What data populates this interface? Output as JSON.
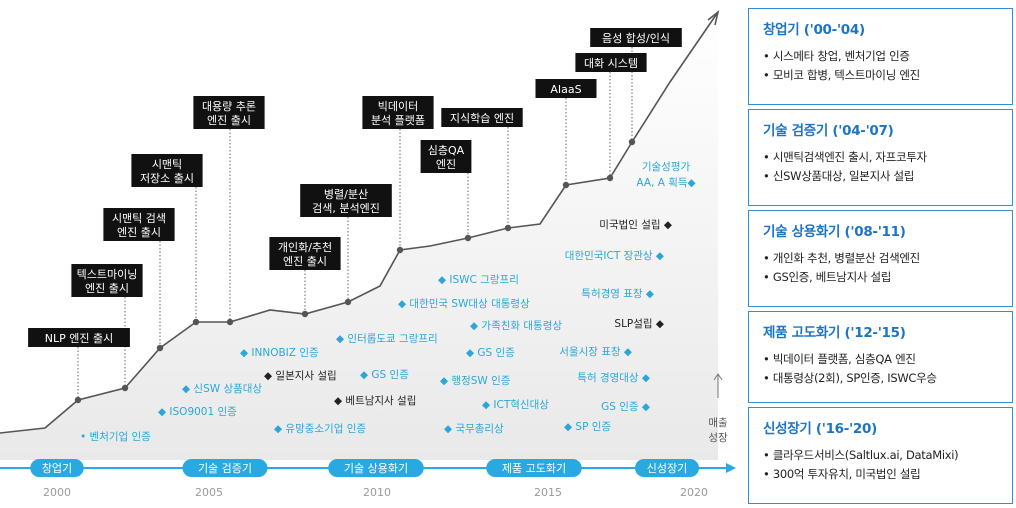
{
  "phases": [
    {
      "label": "창업기",
      "title": "창업기 ('00-'04)",
      "items": [
        "시스메타 창업, 벤처기업 인증",
        "모비코 합병, 텍스트마이닝 엔진"
      ]
    },
    {
      "label": "기술 검증기",
      "title": "기술 검증기  ('04-'07)",
      "items": [
        "시맨틱검색엔진 출시, 자프코투자",
        "신SW상품대상, 일본지사 설립"
      ]
    },
    {
      "label": "기술 상용화기",
      "title": "기술 상용화기 ('08-'11)",
      "items": [
        "개인화 추천, 병렬분산 검색엔진",
        "GS인증, 베트남지사 설립"
      ]
    },
    {
      "label": "제품 고도화기",
      "title": "제품 고도화기 ('12-'15)",
      "items": [
        "빅데이터 플랫폼, 심층QA 엔진",
        "대통령상(2회), SP인증, ISWC우승"
      ]
    },
    {
      "label": "신성장기",
      "title": "신성장기 ('16-'20)",
      "items": [
        "클라우드서비스(Saltlux.ai,  DataMixi)",
        "300억 투자유치, 미국법인 설립"
      ]
    }
  ],
  "years": [
    "2000",
    "2005",
    "2010",
    "2015",
    "2020"
  ],
  "axis_label": [
    "매출",
    "성장"
  ],
  "milestones": [
    {
      "lines": [
        "NLP 엔진 출시"
      ]
    },
    {
      "lines": [
        "텍스트마이닝",
        "엔진 출시"
      ]
    },
    {
      "lines": [
        "시맨틱 검색",
        "엔진 출시"
      ]
    },
    {
      "lines": [
        "시맨틱",
        "저장소 출시"
      ]
    },
    {
      "lines": [
        "대용량 추론",
        "엔진 출시"
      ]
    },
    {
      "lines": [
        "개인화/추천",
        "엔진 출시"
      ]
    },
    {
      "lines": [
        "병렬/분산",
        "검색, 분석엔진"
      ]
    },
    {
      "lines": [
        "빅데이터",
        "분석 플랫폼"
      ]
    },
    {
      "lines": [
        "심층QA",
        "엔진"
      ]
    },
    {
      "lines": [
        "지식학습 엔진"
      ]
    },
    {
      "lines": [
        "AIaaS"
      ]
    },
    {
      "lines": [
        "대화 시스템"
      ]
    },
    {
      "lines": [
        "음성 합성/인식"
      ]
    }
  ],
  "awards": [
    {
      "text": "• 벤처기업 인증",
      "color": "#2aa7d8"
    },
    {
      "text": "◆ ISO9001 인증",
      "color": "#2aa7d8"
    },
    {
      "text": "◆ 신SW 상품대상",
      "color": "#2aa7d8"
    },
    {
      "text": "◆ INNOBIZ 인증",
      "color": "#2aa7d8"
    },
    {
      "text": "◆ 일본지사 설립",
      "color": "#222222"
    },
    {
      "text": "◆ 유망중소기업 인증",
      "color": "#2aa7d8"
    },
    {
      "text": "◆ 베트남지사 설립",
      "color": "#222222"
    },
    {
      "text": "◆ GS 인증",
      "color": "#2aa7d8"
    },
    {
      "text": "◆ 인터롭도쿄 그랑프리",
      "color": "#2aa7d8"
    },
    {
      "text": "◆ ISWC 그랑프리",
      "color": "#2aa7d8"
    },
    {
      "text": "◆ 대한민국 SW대상 대통령상",
      "color": "#2aa7d8"
    },
    {
      "text": "◆ 가족친화 대통령상",
      "color": "#2aa7d8"
    },
    {
      "text": "◆ GS 인증",
      "color": "#2aa7d8"
    },
    {
      "text": "◆ 행정SW 인증",
      "color": "#2aa7d8"
    },
    {
      "text": "◆ ICT혁신대상",
      "color": "#2aa7d8"
    },
    {
      "text": "◆ 국무총리상",
      "color": "#2aa7d8"
    },
    {
      "text": "미국법인 설립 ◆",
      "color": "#222222"
    },
    {
      "text": "대한민국ICT 장관상 ◆",
      "color": "#2aa7d8"
    },
    {
      "text": "특허경영 표창 ◆",
      "color": "#2aa7d8"
    },
    {
      "text": "SLP설립 ◆",
      "color": "#222222"
    },
    {
      "text": "서울시장 표창 ◆",
      "color": "#2aa7d8"
    },
    {
      "text": "특허 경영대상 ◆",
      "color": "#2aa7d8"
    },
    {
      "text": "GS 인증 ◆",
      "color": "#2aa7d8"
    },
    {
      "text": "◆ SP 인증",
      "color": "#2aa7d8"
    },
    {
      "text": "기술성평가",
      "color": "#2aa7d8"
    },
    {
      "text": "AA, A 획득◆",
      "color": "#2aa7d8"
    }
  ],
  "colors": {
    "accent": "#2aa7d8",
    "card_border": "#2f8fd6",
    "card_title": "#1c75c4",
    "label_bg": "#111111",
    "line": "#555555"
  }
}
